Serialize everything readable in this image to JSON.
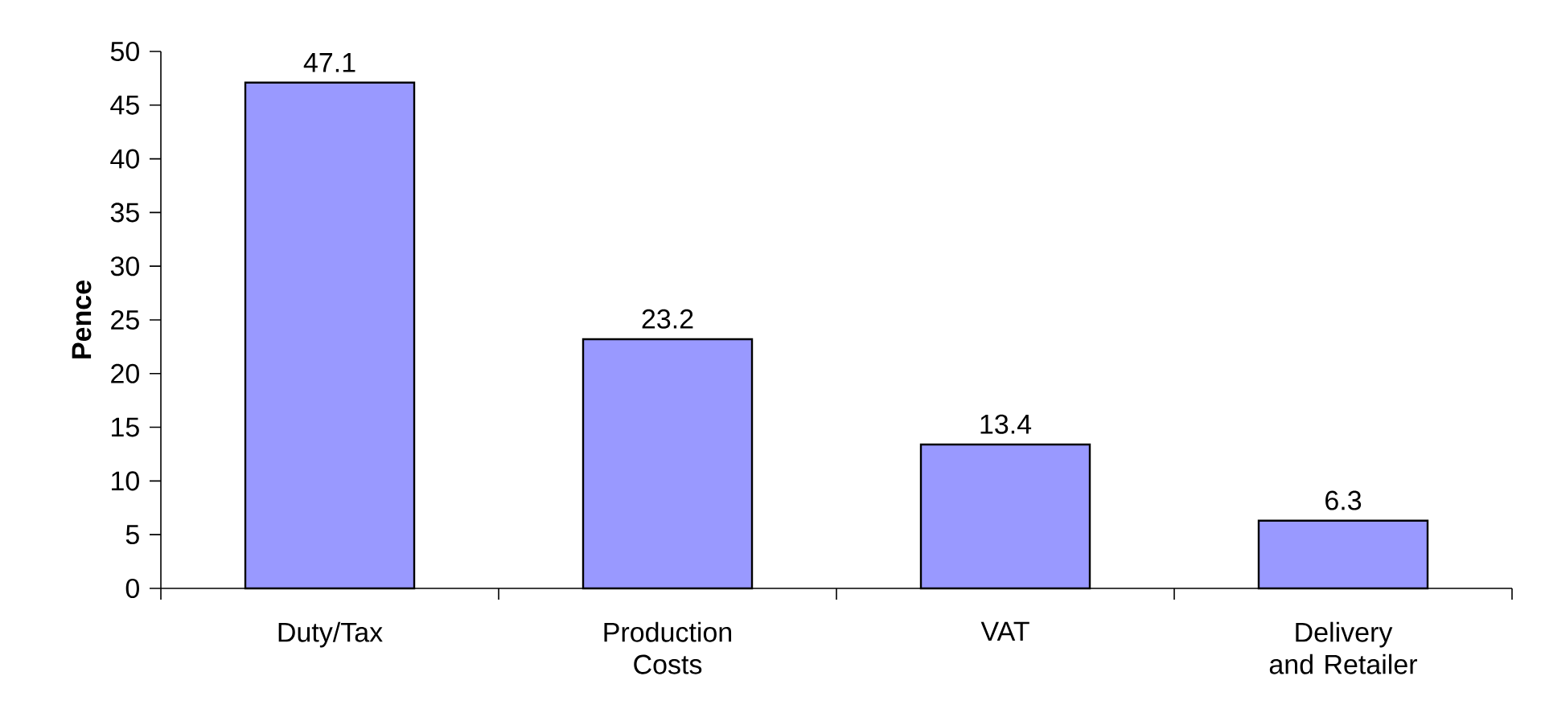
{
  "chart_data": {
    "type": "bar",
    "ylabel": "Pence",
    "categories": [
      "Duty/Tax",
      "Production Costs",
      "VAT",
      "Delivery and Retailer"
    ],
    "values": [
      47.1,
      23.2,
      13.4,
      6.3
    ],
    "color": "#9999ff",
    "ylim": [
      0,
      50
    ],
    "yticks": [
      0,
      5,
      10,
      15,
      20,
      25,
      30,
      35,
      40,
      45,
      50
    ],
    "data_labels": true
  }
}
